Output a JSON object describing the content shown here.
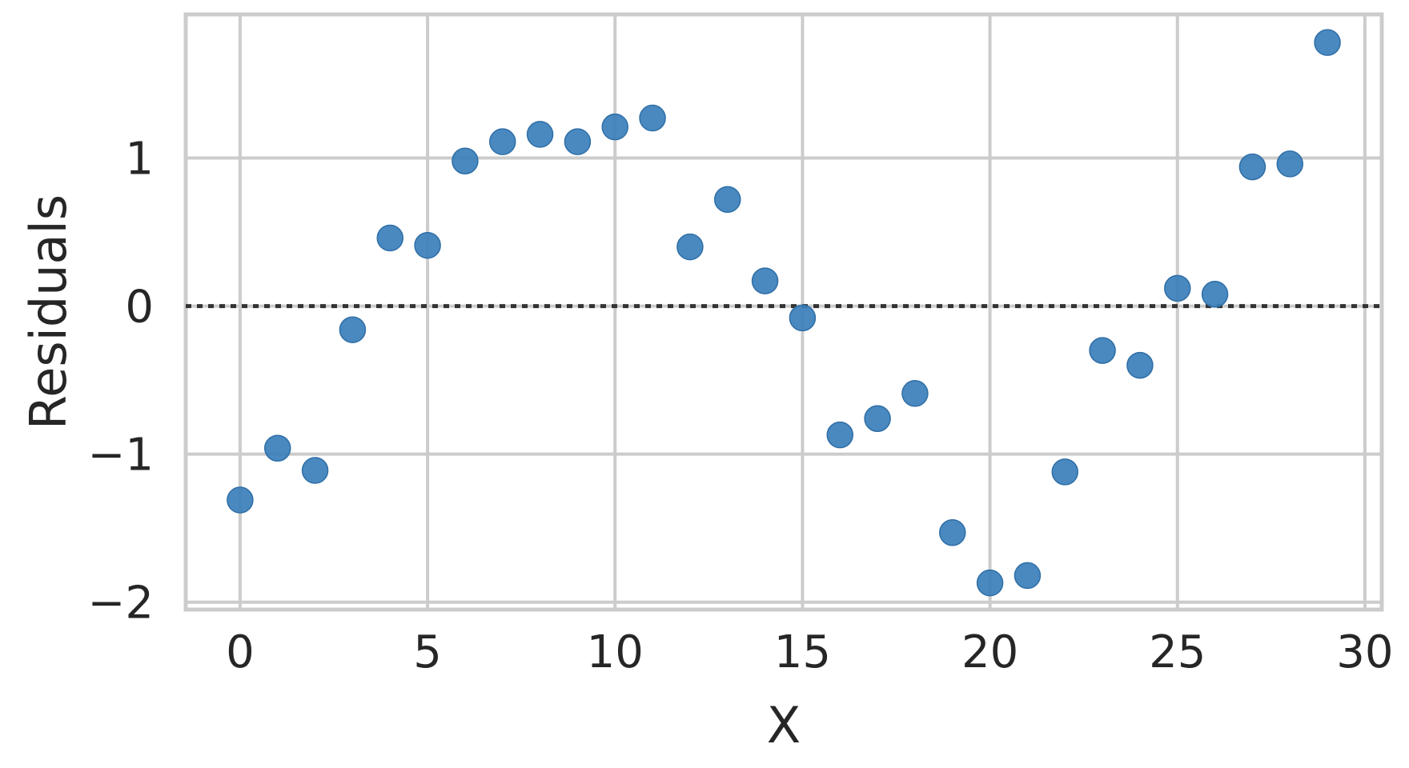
{
  "chart_data": {
    "type": "scatter",
    "xlabel": "X",
    "ylabel": "Residuals",
    "xlim": [
      -1.45,
      30.45
    ],
    "ylim": [
      -2.05,
      1.97
    ],
    "xticks": [
      0,
      5,
      10,
      15,
      20,
      25,
      30
    ],
    "yticks": [
      -2,
      -1,
      0,
      1
    ],
    "xtick_labels": [
      "0",
      "5",
      "10",
      "15",
      "20",
      "25",
      "30"
    ],
    "ytick_labels": [
      "−2",
      "−1",
      "0",
      "1"
    ],
    "grid": true,
    "reference_line": {
      "y": 0,
      "style": "dotted"
    },
    "point_color": "#3a7fbb",
    "series": [
      {
        "x": [
          0,
          1,
          2,
          3,
          4,
          5,
          6,
          7,
          8,
          9,
          10,
          11,
          12,
          13,
          14,
          15,
          16,
          17,
          18,
          19,
          20,
          21,
          22,
          23,
          24,
          25,
          26,
          27,
          28,
          29
        ],
        "y": [
          -1.31,
          -0.96,
          -1.11,
          -0.16,
          0.46,
          0.41,
          0.98,
          1.11,
          1.16,
          1.11,
          1.21,
          1.27,
          0.4,
          0.72,
          0.17,
          -0.08,
          -0.87,
          -0.76,
          -0.59,
          -1.53,
          -1.87,
          -1.82,
          -1.12,
          -0.3,
          -0.4,
          0.12,
          0.08,
          0.94,
          0.96,
          1.78
        ]
      }
    ]
  }
}
